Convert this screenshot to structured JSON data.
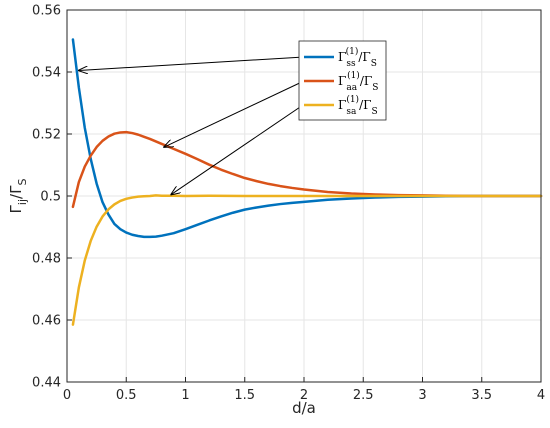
{
  "chart_data": {
    "type": "line",
    "xlabel": "d/a",
    "ylabel": {
      "main": "Γ",
      "sub": "ij",
      "slash": "/Γ",
      "sub2": "S"
    },
    "xlim": [
      0,
      4
    ],
    "ylim": [
      0.44,
      0.56
    ],
    "xticks": [
      "0",
      "0.5",
      "1",
      "1.5",
      "2",
      "2.5",
      "3",
      "3.5",
      "4"
    ],
    "yticks": [
      "0.44",
      "0.46",
      "0.48",
      "0.5",
      "0.52",
      "0.54",
      "0.56"
    ],
    "grid": true,
    "legend_position": "top-right",
    "series": [
      {
        "legend": {
          "base": "Γ",
          "sub": "ss",
          "sup": "(1)",
          "tail": "/Γ",
          "tailsub": "S"
        },
        "color": "#0072BD",
        "x": [
          0.05,
          0.1,
          0.15,
          0.2,
          0.25,
          0.3,
          0.35,
          0.4,
          0.45,
          0.5,
          0.55,
          0.6,
          0.65,
          0.7,
          0.75,
          0.8,
          0.9,
          1.0,
          1.1,
          1.2,
          1.3,
          1.4,
          1.5,
          1.6,
          1.7,
          1.8,
          1.9,
          2.0,
          2.2,
          2.4,
          2.6,
          2.8,
          3.0,
          3.2,
          3.4,
          3.6,
          3.8,
          4.0
        ],
        "y": [
          0.5505,
          0.535,
          0.522,
          0.512,
          0.504,
          0.498,
          0.494,
          0.491,
          0.4893,
          0.4882,
          0.4875,
          0.4871,
          0.4868,
          0.4868,
          0.4869,
          0.4872,
          0.488,
          0.4893,
          0.4907,
          0.4921,
          0.4934,
          0.4946,
          0.4956,
          0.4963,
          0.4969,
          0.4974,
          0.4978,
          0.4981,
          0.4988,
          0.4992,
          0.4995,
          0.4997,
          0.4998,
          0.4999,
          0.5,
          0.5,
          0.5,
          0.5
        ]
      },
      {
        "legend": {
          "base": "Γ",
          "sub": "aa",
          "sup": "(1)",
          "tail": "/Γ",
          "tailsub": "S"
        },
        "color": "#D95319",
        "x": [
          0.05,
          0.1,
          0.15,
          0.2,
          0.25,
          0.3,
          0.35,
          0.4,
          0.45,
          0.5,
          0.55,
          0.6,
          0.65,
          0.7,
          0.75,
          0.8,
          0.9,
          1.0,
          1.1,
          1.2,
          1.3,
          1.4,
          1.5,
          1.6,
          1.7,
          1.8,
          1.9,
          2.0,
          2.2,
          2.4,
          2.6,
          2.8,
          3.0,
          3.2,
          3.4,
          3.6,
          3.8,
          4.0
        ],
        "y": [
          0.4965,
          0.5045,
          0.5095,
          0.513,
          0.5158,
          0.5178,
          0.5192,
          0.5201,
          0.5205,
          0.5206,
          0.5203,
          0.5198,
          0.5191,
          0.5184,
          0.5176,
          0.5168,
          0.5152,
          0.5136,
          0.5119,
          0.5101,
          0.5085,
          0.5071,
          0.5058,
          0.5048,
          0.5039,
          0.5032,
          0.5026,
          0.5021,
          0.5013,
          0.5008,
          0.5005,
          0.5003,
          0.5002,
          0.5001,
          0.5,
          0.5,
          0.5,
          0.5
        ]
      },
      {
        "legend": {
          "base": "Γ",
          "sub": "sa",
          "sup": "(1)",
          "tail": "/Γ",
          "tailsub": "S"
        },
        "color": "#EDB120",
        "x": [
          0.05,
          0.1,
          0.15,
          0.2,
          0.25,
          0.3,
          0.35,
          0.4,
          0.45,
          0.5,
          0.55,
          0.6,
          0.65,
          0.7,
          0.75,
          0.8,
          0.9,
          1.0,
          1.2,
          1.5,
          2.0,
          2.5,
          3.0,
          3.5,
          4.0
        ],
        "y": [
          0.4585,
          0.4705,
          0.4792,
          0.4855,
          0.4901,
          0.4934,
          0.4957,
          0.4973,
          0.4984,
          0.4991,
          0.4995,
          0.4998,
          0.4999,
          0.5,
          0.5002,
          0.5001,
          0.5001,
          0.5,
          0.5001,
          0.5,
          0.5,
          0.5,
          0.5,
          0.5,
          0.5
        ]
      }
    ],
    "annotation_arrow_targets": [
      {
        "x": 0.1,
        "y": 0.5405
      },
      {
        "x": 0.82,
        "y": 0.5158
      },
      {
        "x": 0.88,
        "y": 0.5005
      }
    ]
  }
}
